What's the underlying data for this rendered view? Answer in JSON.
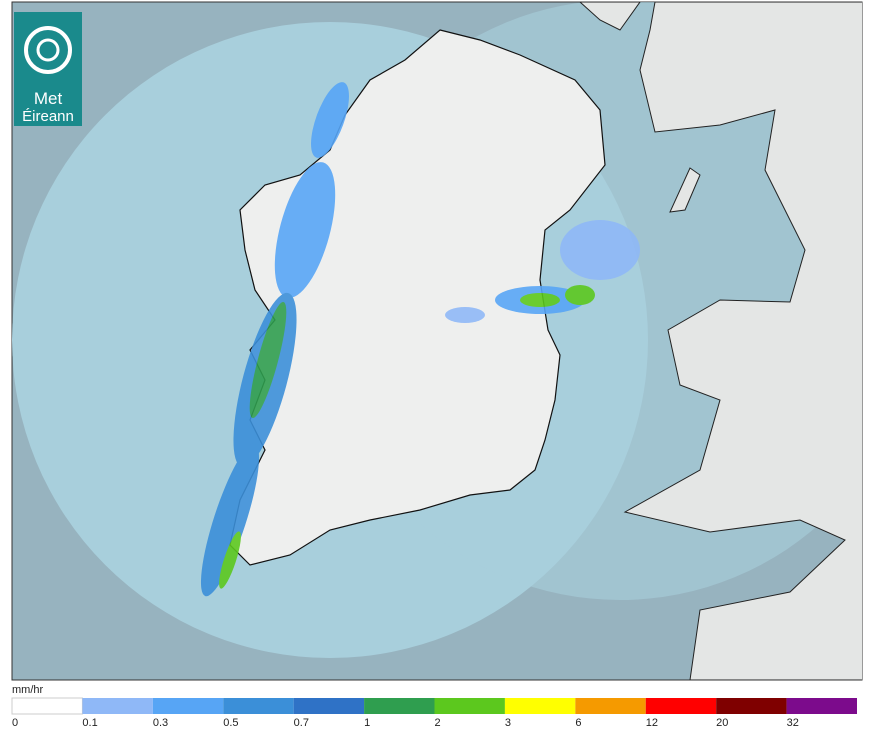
{
  "logo": {
    "line1": "Met",
    "line2": "Éireann"
  },
  "legend": {
    "unit": "mm/hr",
    "stops": [
      {
        "label": 0,
        "color": "#ffffff"
      },
      {
        "label": 0.1,
        "color": "#8fb8f7"
      },
      {
        "label": 0.3,
        "color": "#57a5f5"
      },
      {
        "label": 0.5,
        "color": "#3b8fd8"
      },
      {
        "label": 0.7,
        "color": "#2f72c6"
      },
      {
        "label": 1,
        "color": "#2f9e4f"
      },
      {
        "label": 2,
        "color": "#5cc81e"
      },
      {
        "label": 3,
        "color": "#ffff00"
      },
      {
        "label": 6,
        "color": "#f59a00"
      },
      {
        "label": 12,
        "color": "#ff0000"
      },
      {
        "label": 20,
        "color": "#7f0000"
      },
      {
        "label": 32,
        "color": "#7c0b8c"
      }
    ]
  }
}
